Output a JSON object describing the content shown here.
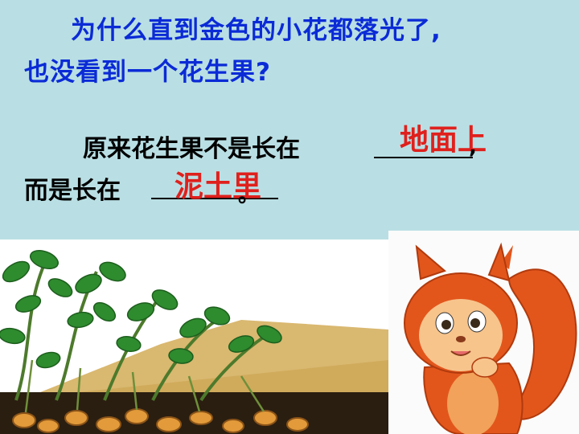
{
  "question": {
    "line1": "为什么直到金色的小花都落光了,",
    "line2": "也没看到一个花生果?"
  },
  "statement": {
    "line1_prefix": "原来花生果不是长在",
    "answer1": "地面上",
    "line1_suffix": ",",
    "line2_prefix": "而是长在",
    "answer2": "泥土里",
    "line2_suffix": "。"
  },
  "images": {
    "left": "peanut-plant-illustration",
    "right": "cartoon-squirrel"
  },
  "colors": {
    "background": "#b9dfe4",
    "question_text": "#0b2bd6",
    "answer_text": "#e0201c",
    "body_text": "#000000"
  }
}
